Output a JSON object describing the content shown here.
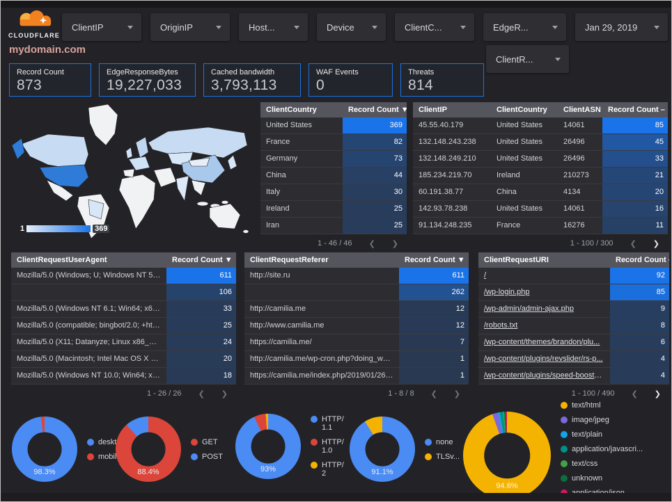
{
  "header": {
    "brand": "CLOUDFLARE",
    "filters": [
      {
        "id": "client-ip",
        "label": "ClientIP"
      },
      {
        "id": "origin-ip",
        "label": "OriginIP"
      },
      {
        "id": "host",
        "label": "Host..."
      },
      {
        "id": "device",
        "label": "Device"
      },
      {
        "id": "client-c",
        "label": "ClientC..."
      },
      {
        "id": "edge-r",
        "label": "EdgeR..."
      },
      {
        "id": "date-range",
        "label": "Jan 29, 2019"
      }
    ],
    "filter_row2": "ClientR..."
  },
  "title": "mydomain.com",
  "scorecards": [
    {
      "label": "Record Count",
      "value": "873"
    },
    {
      "label": "EdgeResponseBytes",
      "value": "19,227,033"
    },
    {
      "label": "Cached bandwidth",
      "value": "3,793,113"
    },
    {
      "label": "WAF Events",
      "value": "0"
    },
    {
      "label": "Threats",
      "value": "814"
    }
  ],
  "map": {
    "scale_min": "1",
    "scale_max": "369"
  },
  "accent_colors": {
    "heat_blue": "#1a73e8",
    "card_border": "#1a73e8",
    "title_pink": "#d9a29c"
  },
  "tables": {
    "client_country": {
      "columns": [
        "ClientCountry",
        "Record Count"
      ],
      "sort_glyph": "▼",
      "rows": [
        [
          "United States",
          369
        ],
        [
          "France",
          82
        ],
        [
          "Germany",
          73
        ],
        [
          "China",
          44
        ],
        [
          "Italy",
          30
        ],
        [
          "Ireland",
          25
        ],
        [
          "Iran",
          25
        ]
      ],
      "max": 369,
      "pagination": "1 - 46 / 46",
      "next_active": false,
      "links": false
    },
    "client_ip": {
      "columns": [
        "ClientIP",
        "ClientCountry",
        "ClientASN",
        "Record Count"
      ],
      "sort_glyph": "–",
      "rows": [
        [
          "45.55.40.179",
          "United States",
          "14061",
          85
        ],
        [
          "132.148.243.238",
          "United States",
          "26496",
          45
        ],
        [
          "132.148.249.210",
          "United States",
          "26496",
          33
        ],
        [
          "185.234.219.70",
          "Ireland",
          "210273",
          21
        ],
        [
          "60.191.38.77",
          "China",
          "4134",
          20
        ],
        [
          "142.93.78.238",
          "United States",
          "14061",
          16
        ],
        [
          "91.134.248.235",
          "France",
          "16276",
          11
        ]
      ],
      "max": 85,
      "pagination": "1 - 100 / 300",
      "next_active": true,
      "links": false
    },
    "user_agent": {
      "columns": [
        "ClientRequestUserAgent",
        "Record Count"
      ],
      "sort_glyph": "▼",
      "rows": [
        [
          "Mozilla/5.0 (Windows; U; Windows NT 5.1; en-U...",
          611
        ],
        [
          "",
          106
        ],
        [
          "Mozilla/5.0 (Windows NT 6.1; Win64; x64; rv:64...",
          33
        ],
        [
          "Mozilla/5.0 (compatible; bingbot/2.0; +http://w...",
          25
        ],
        [
          "Mozilla/5.0 (X11; Datanyze; Linux x86_64) Appl...",
          24
        ],
        [
          "Mozilla/5.0 (Macintosh; Intel Mac OS X 10.11; r...",
          20
        ],
        [
          "Mozilla/5.0 (Windows NT 10.0; Win64; x64) App...",
          18
        ]
      ],
      "max": 611,
      "pagination": "1 - 26 / 26",
      "next_active": false,
      "links": false
    },
    "referer": {
      "columns": [
        "ClientRequestReferer",
        "Record Count"
      ],
      "sort_glyph": "▼",
      "rows": [
        [
          "http://site.ru",
          611
        ],
        [
          "",
          262
        ],
        [
          "http://camilia.me",
          12
        ],
        [
          "http://www.camilia.me",
          12
        ],
        [
          "https://camilia.me/",
          7
        ],
        [
          "http://camilia.me/wp-cron.php?doing_wp_cron...",
          1
        ],
        [
          "https://camilia.me/index.php/2019/01/26/stor...",
          1
        ]
      ],
      "max": 611,
      "pagination": "1 - 8 / 8",
      "next_active": false,
      "links": false
    },
    "request_uri": {
      "columns": [
        "ClientRequestURI",
        "Record Count"
      ],
      "sort_glyph": "–",
      "rows": [
        [
          "/",
          92
        ],
        [
          "/wp-login.php",
          85
        ],
        [
          "/wp-admin/admin-ajax.php",
          9
        ],
        [
          "/robots.txt",
          8
        ],
        [
          "/wp-content/themes/brandon/plu...",
          6
        ],
        [
          "/wp-content/plugins/revslider/rs-p...",
          4
        ],
        [
          "/wp-content/plugins/speed-booste...",
          4
        ]
      ],
      "max": 92,
      "pagination": "1 - 100 / 490",
      "next_active": true,
      "links": true
    }
  },
  "donuts": [
    {
      "id": "device-type",
      "percent_label": "98.3%",
      "slices": [
        {
          "label": "deskt...",
          "color": "#4b8bf4",
          "value": 98.3
        },
        {
          "label": "mobile",
          "color": "#dc453a",
          "value": 1.7
        }
      ]
    },
    {
      "id": "request-method",
      "percent_label": "88.4%",
      "slices": [
        {
          "label": "GET",
          "color": "#dc453a",
          "value": 88.4
        },
        {
          "label": "POST",
          "color": "#4b8bf4",
          "value": 11.6
        }
      ]
    },
    {
      "id": "http-protocol",
      "percent_label": "93%",
      "slices": [
        {
          "label": "HTTP/1.1",
          "color": "#4b8bf4",
          "value": 93
        },
        {
          "label": "HTTP/1.0",
          "color": "#dc453a",
          "value": 5.8
        },
        {
          "label": "HTTP/2",
          "color": "#f5b301",
          "value": 1.2
        }
      ]
    },
    {
      "id": "tls-version",
      "percent_label": "91.1%",
      "slices": [
        {
          "label": "none",
          "color": "#4b8bf4",
          "value": 91.1
        },
        {
          "label": "TLSv...",
          "color": "#f5b301",
          "value": 8.9
        }
      ]
    },
    {
      "id": "content-type",
      "percent_label": "94.6%",
      "legend_arrows": {
        "up": "▲",
        "down": "▼"
      },
      "slices": [
        {
          "label": "text/html",
          "color": "#f5b301",
          "value": 94.6
        },
        {
          "label": "image/jpeg",
          "color": "#7b68d9",
          "value": 2.1
        },
        {
          "label": "text/plain",
          "color": "#12a4e8",
          "value": 0.7
        },
        {
          "label": "application/javascri...",
          "color": "#00918b",
          "value": 1.1
        },
        {
          "label": "text/css",
          "color": "#43a047",
          "value": 0.5
        },
        {
          "label": "unknown",
          "color": "#0b6e3f",
          "value": 0.5
        },
        {
          "label": "application/json",
          "color": "#d01a5f",
          "value": 0.5
        }
      ]
    }
  ],
  "pager_icons": {
    "prev": "❮",
    "next": "❯"
  }
}
